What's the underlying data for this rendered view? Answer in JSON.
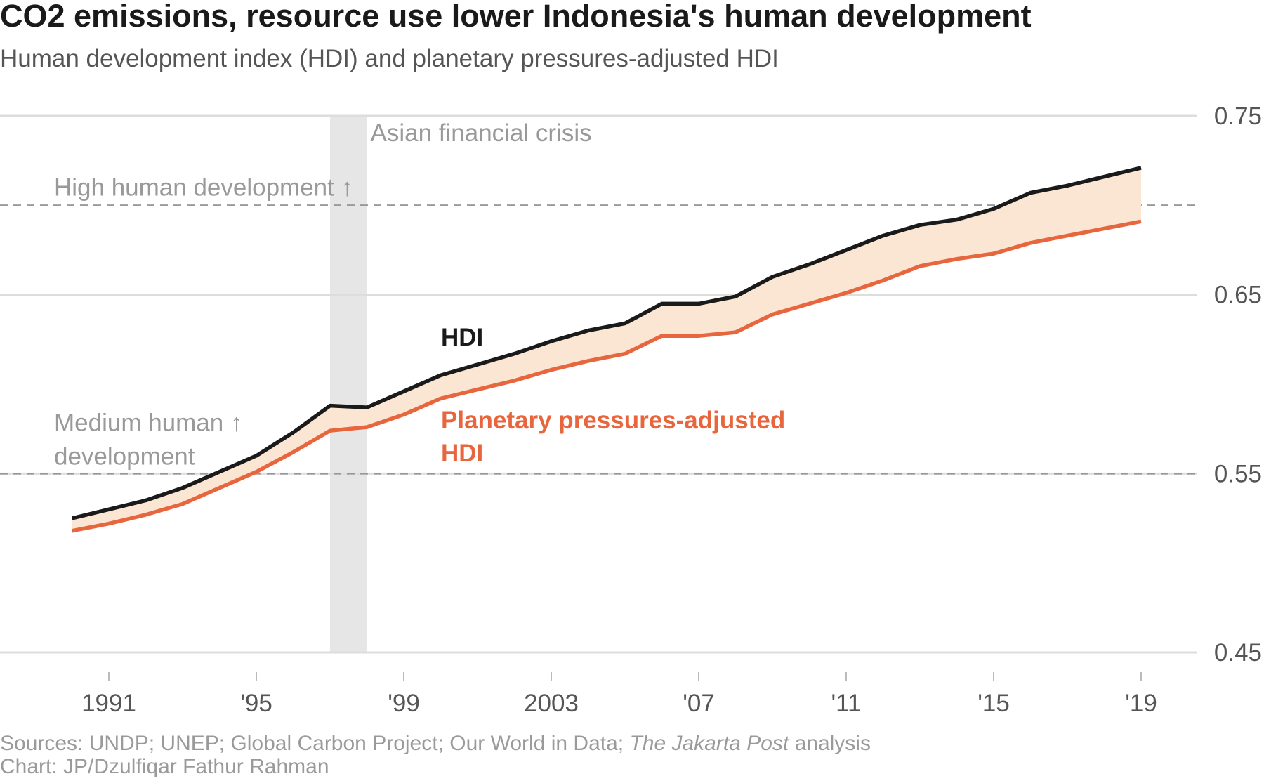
{
  "title": "CO2 emissions, resource use lower Indonesia's human development",
  "subtitle": "Human development index (HDI) and planetary pressures-adjusted HDI",
  "source": {
    "line1_prefix": "Sources: UNDP; UNEP; Global Carbon Project; Our World in Data; ",
    "line1_italic": "The Jakarta Post",
    "line1_suffix": " analysis",
    "line2": "Chart: JP/Dzulfiqar Fathur Rahman"
  },
  "colors": {
    "hdi": "#1a1a1a",
    "phdi": "#e8663d",
    "band": "#fbe6d4",
    "grid": "#dddddd",
    "threshold": "#999999",
    "shade": "#e6e6e6",
    "annotation": "#999999",
    "tick": "#555555"
  },
  "chart_data": {
    "type": "line",
    "x": [
      1990,
      1991,
      1992,
      1993,
      1994,
      1995,
      1996,
      1997,
      1998,
      1999,
      2000,
      2001,
      2002,
      2003,
      2004,
      2005,
      2006,
      2007,
      2008,
      2009,
      2010,
      2011,
      2012,
      2013,
      2014,
      2015,
      2016,
      2017,
      2018,
      2019
    ],
    "series": [
      {
        "name": "HDI",
        "color": "#1a1a1a",
        "values": [
          0.525,
          0.53,
          0.535,
          0.542,
          0.551,
          0.56,
          0.573,
          0.588,
          0.587,
          0.596,
          0.605,
          0.611,
          0.617,
          0.624,
          0.63,
          0.634,
          0.645,
          0.645,
          0.649,
          0.66,
          0.667,
          0.675,
          0.683,
          0.689,
          0.692,
          0.698,
          0.707,
          0.711,
          0.716,
          0.721
        ]
      },
      {
        "name": "Planetary pressures-adjusted HDI",
        "color": "#e8663d",
        "values": [
          0.518,
          0.522,
          0.527,
          0.533,
          0.542,
          0.551,
          0.562,
          0.574,
          0.576,
          0.583,
          0.592,
          0.597,
          0.602,
          0.608,
          0.613,
          0.617,
          0.627,
          0.627,
          0.629,
          0.639,
          0.645,
          0.651,
          0.658,
          0.666,
          0.67,
          0.673,
          0.679,
          0.683,
          0.687,
          0.691
        ]
      }
    ],
    "ylim": [
      0.45,
      0.75
    ],
    "xlim": [
      1988.7,
      2020.5
    ],
    "yticks": [
      {
        "value": 0.75,
        "label": "0.75"
      },
      {
        "value": 0.65,
        "label": "0.65"
      },
      {
        "value": 0.55,
        "label": "0.55"
      },
      {
        "value": 0.45,
        "label": "0.45"
      }
    ],
    "xticks": [
      {
        "value": 1991,
        "label": "1991"
      },
      {
        "value": 1995,
        "label": "'95"
      },
      {
        "value": 1999,
        "label": "'99"
      },
      {
        "value": 2003,
        "label": "2003"
      },
      {
        "value": 2007,
        "label": "'07"
      },
      {
        "value": 2011,
        "label": "'11"
      },
      {
        "value": 2015,
        "label": "'15"
      },
      {
        "value": 2019,
        "label": "'19"
      }
    ],
    "thresholds": [
      {
        "value": 0.7,
        "label": "High human development ↑"
      },
      {
        "value": 0.55,
        "label_lines": [
          "Medium human ↑",
          "development"
        ]
      }
    ],
    "shaded_period": {
      "start": 1997,
      "end": 1998,
      "label": "Asian financial crisis"
    },
    "series_labels": {
      "hdi": "HDI",
      "phdi_lines": [
        "Planetary pressures-adjusted",
        "HDI"
      ]
    },
    "grid": true
  }
}
